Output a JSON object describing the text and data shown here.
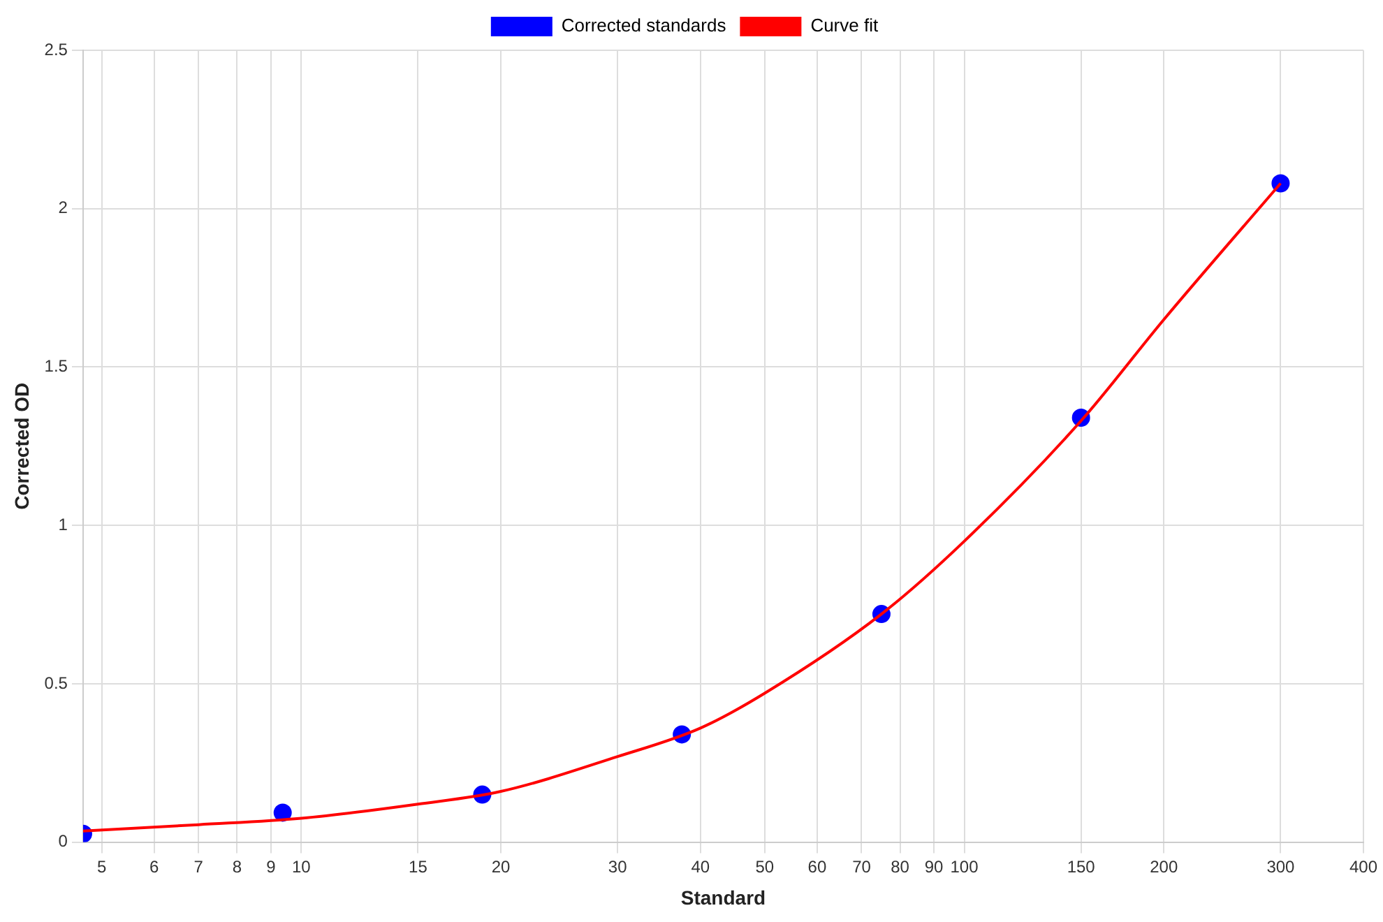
{
  "chart_data": {
    "type": "scatter",
    "xlabel": "Standard",
    "ylabel": "Corrected OD",
    "log": "x",
    "grid": true,
    "legend": "top",
    "xlim": [
      4.6875,
      400
    ],
    "xticks": [
      5,
      6,
      7,
      8,
      9,
      10,
      15,
      20,
      30,
      40,
      50,
      60,
      70,
      80,
      90,
      100,
      150,
      200,
      300,
      400
    ],
    "ylim": [
      0,
      2.5
    ],
    "yticks": [
      0,
      0.5,
      1,
      1.5,
      2,
      2.5
    ],
    "series": [
      {
        "name": "Corrected standards",
        "type": "scatter",
        "marker": "circle",
        "color": "#0000ff",
        "x": [
          4.6875,
          9.375,
          18.75,
          37.5,
          75,
          150,
          300
        ],
        "values": [
          0.026,
          0.093,
          0.15,
          0.34,
          0.72,
          1.34,
          2.08
        ]
      },
      {
        "name": "Curve fit",
        "type": "line",
        "marker": "none",
        "color": "#ff0000",
        "x": [
          4.6875,
          7,
          10,
          15,
          20,
          30,
          40,
          50,
          75,
          100,
          150,
          200,
          300
        ],
        "values": [
          0.035,
          0.055,
          0.075,
          0.12,
          0.16,
          0.27,
          0.36,
          0.47,
          0.72,
          0.95,
          1.33,
          1.65,
          2.08
        ]
      }
    ]
  }
}
